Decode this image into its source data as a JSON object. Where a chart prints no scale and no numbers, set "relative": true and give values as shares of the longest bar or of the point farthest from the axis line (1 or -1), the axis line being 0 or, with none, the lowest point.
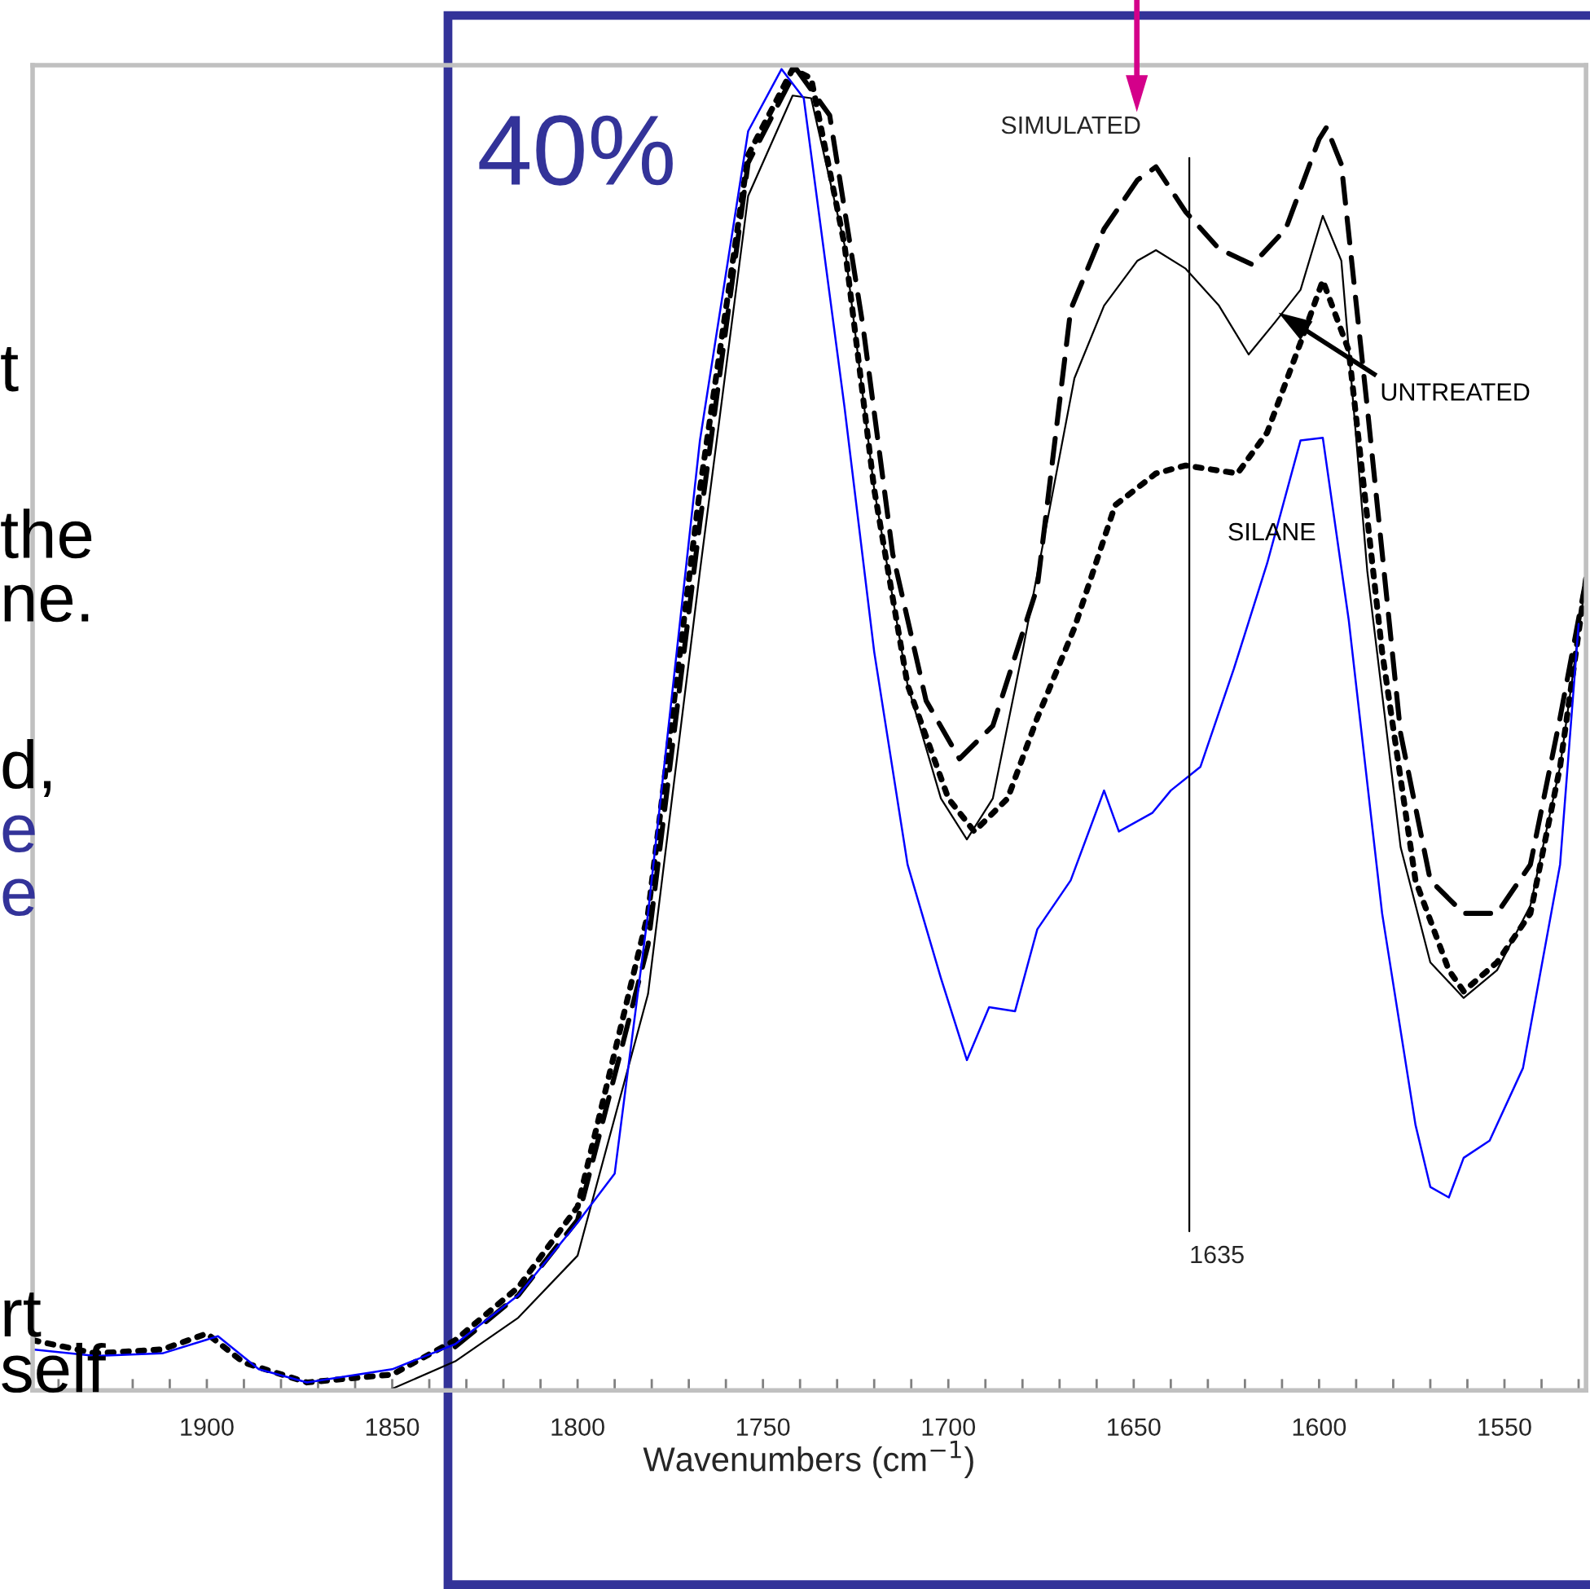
{
  "chart_data": {
    "type": "line",
    "relative": true,
    "xlabel": "Wavenumbers (cm$^{−1}$)",
    "grid": false,
    "legend": false,
    "xlim": [
      1947,
      1528
    ],
    "xticks": [
      {
        "value": 1940,
        "label": null
      },
      {
        "value": 1930,
        "label": null
      },
      {
        "value": 1920,
        "label": null
      },
      {
        "value": 1910,
        "label": null
      },
      1900,
      {
        "value": 1890,
        "label": null
      },
      {
        "value": 1880,
        "label": null
      },
      {
        "value": 1870,
        "label": null
      },
      {
        "value": 1860,
        "label": null
      },
      1850,
      {
        "value": 1840,
        "label": null
      },
      {
        "value": 1830,
        "label": null
      },
      {
        "value": 1820,
        "label": null
      },
      {
        "value": 1810,
        "label": null
      },
      1800,
      {
        "value": 1790,
        "label": null
      },
      {
        "value": 1780,
        "label": null
      },
      {
        "value": 1770,
        "label": null
      },
      {
        "value": 1760,
        "label": null
      },
      1750,
      {
        "value": 1740,
        "label": null
      },
      {
        "value": 1730,
        "label": null
      },
      {
        "value": 1720,
        "label": null
      },
      {
        "value": 1710,
        "label": null
      },
      1700,
      {
        "value": 1690,
        "label": null
      },
      {
        "value": 1680,
        "label": null
      },
      {
        "value": 1670,
        "label": null
      },
      {
        "value": 1660,
        "label": null
      },
      1650,
      {
        "value": 1640,
        "label": null
      },
      {
        "value": 1630,
        "label": null
      },
      {
        "value": 1620,
        "label": null
      },
      {
        "value": 1610,
        "label": null
      },
      1600,
      {
        "value": 1590,
        "label": null
      },
      {
        "value": 1580,
        "label": null
      },
      {
        "value": 1570,
        "label": null
      },
      {
        "value": 1560,
        "label": null
      },
      1550,
      {
        "value": 1540,
        "label": null
      },
      {
        "value": 1530,
        "label": null
      }
    ],
    "series": [
      {
        "color": "#000000",
        "line_style": "dotted",
        "x": [
          1947,
          1930,
          1912,
          1900,
          1890,
          1873,
          1850,
          1833,
          1816,
          1800,
          1781,
          1767,
          1754,
          1742,
          1737,
          1728,
          1720,
          1711,
          1700,
          1693,
          1684,
          1676,
          1666,
          1655,
          1644,
          1636,
          1622,
          1614,
          1605,
          1599,
          1592,
          1583,
          1574,
          1565,
          1561,
          1552,
          1543,
          1535,
          1528
        ],
        "values": [
          0.038,
          0.028,
          0.031,
          0.043,
          0.021,
          0.006,
          0.012,
          0.038,
          0.078,
          0.139,
          0.361,
          0.682,
          0.935,
          1.0,
          0.993,
          0.867,
          0.682,
          0.534,
          0.448,
          0.423,
          0.448,
          0.509,
          0.577,
          0.67,
          0.694,
          0.7,
          0.694,
          0.725,
          0.793,
          0.84,
          0.787,
          0.559,
          0.386,
          0.318,
          0.302,
          0.324,
          0.361,
          0.472,
          0.614
        ]
      },
      {
        "color": "#000000",
        "line_style": "dashed",
        "x": [
          1833,
          1816,
          1800,
          1781,
          1767,
          1754,
          1741,
          1732,
          1723,
          1715,
          1706,
          1697,
          1688,
          1676,
          1667,
          1658,
          1649,
          1644,
          1636,
          1627,
          1618,
          1609,
          1600,
          1598,
          1594,
          1587,
          1578,
          1570,
          1561,
          1552,
          1543,
          1535,
          1528
        ],
        "values": [
          0.033,
          0.072,
          0.129,
          0.337,
          0.657,
          0.929,
          1.0,
          0.965,
          0.805,
          0.633,
          0.522,
          0.478,
          0.503,
          0.608,
          0.818,
          0.879,
          0.916,
          0.926,
          0.892,
          0.864,
          0.852,
          0.879,
          0.947,
          0.956,
          0.928,
          0.744,
          0.497,
          0.386,
          0.361,
          0.361,
          0.398,
          0.509,
          0.614
        ]
      },
      {
        "color": "#000000",
        "line_style": "solid",
        "x": [
          1851,
          1833,
          1816,
          1800,
          1781,
          1767,
          1754,
          1742,
          1737,
          1728,
          1720,
          1711,
          1702,
          1695,
          1688,
          1680,
          1666,
          1658,
          1649,
          1644,
          1636,
          1627,
          1619,
          1612,
          1605,
          1599,
          1594,
          1587,
          1578,
          1570,
          1561,
          1552,
          1543,
          1535,
          1528
        ],
        "values": [
          0.0,
          0.022,
          0.055,
          0.102,
          0.3,
          0.62,
          0.904,
          0.98,
          0.978,
          0.867,
          0.682,
          0.534,
          0.448,
          0.417,
          0.448,
          0.559,
          0.766,
          0.821,
          0.855,
          0.863,
          0.849,
          0.821,
          0.784,
          0.808,
          0.833,
          0.889,
          0.855,
          0.62,
          0.411,
          0.324,
          0.297,
          0.318,
          0.367,
          0.472,
          0.614
        ]
      },
      {
        "color": "#0000ff",
        "line_style": "solid",
        "x": [
          1947,
          1930,
          1912,
          1897,
          1886,
          1873,
          1850,
          1833,
          1816,
          1800,
          1790,
          1781,
          1767,
          1754,
          1745,
          1739,
          1728,
          1720,
          1711,
          1702,
          1695,
          1689,
          1682,
          1676,
          1667,
          1658,
          1654,
          1645,
          1640,
          1632,
          1623,
          1614,
          1605,
          1599,
          1592,
          1583,
          1574,
          1570,
          1565,
          1561,
          1554,
          1545,
          1535,
          1530
        ],
        "values": [
          0.031,
          0.026,
          0.028,
          0.041,
          0.016,
          0.006,
          0.016,
          0.035,
          0.072,
          0.127,
          0.164,
          0.361,
          0.719,
          0.953,
          1.0,
          0.978,
          0.744,
          0.559,
          0.398,
          0.312,
          0.25,
          0.29,
          0.287,
          0.349,
          0.386,
          0.454,
          0.423,
          0.437,
          0.454,
          0.472,
          0.546,
          0.626,
          0.719,
          0.721,
          0.583,
          0.361,
          0.201,
          0.154,
          0.146,
          0.176,
          0.189,
          0.244,
          0.398,
          0.58
        ]
      }
    ],
    "ref_lines": [
      {
        "axis": "x",
        "value": 1635,
        "label": "1635",
        "color": "#000000"
      }
    ],
    "annotations": [
      {
        "text": "SIMULATED",
        "x": 1645,
        "y": 0.926
      },
      "UNTREATED",
      "SILANE",
      "40%",
      "t",
      "the",
      "ne.",
      "d,",
      "e",
      "e",
      "rt",
      "self"
    ]
  }
}
